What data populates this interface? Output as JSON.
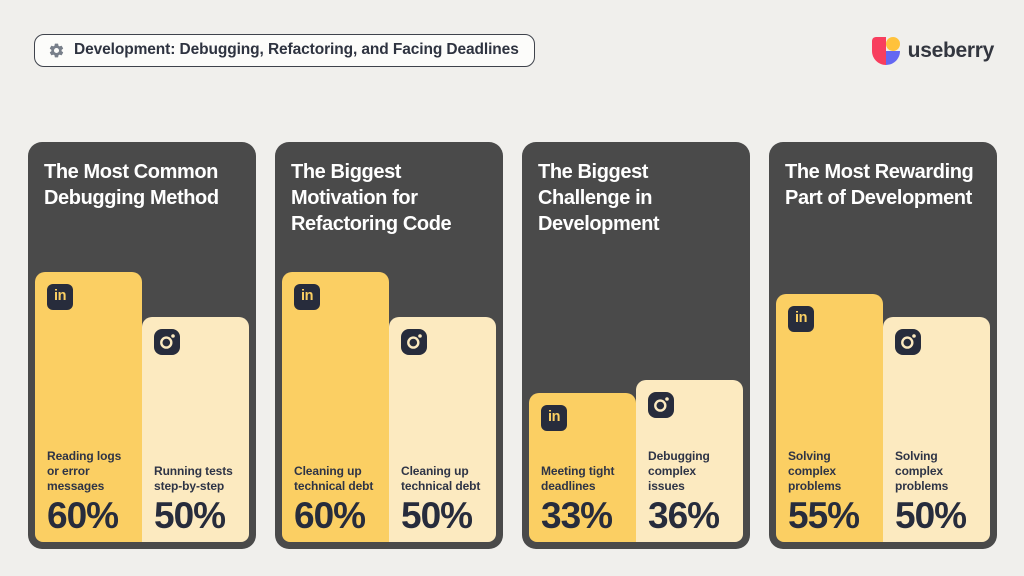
{
  "header": {
    "tag_label": "Development: Debugging, Refactoring, and Facing Deadlines",
    "brand_name": "useberry"
  },
  "icons": {
    "gear": "gear-icon",
    "linkedin": "linkedin-icon",
    "instagram": "instagram-icon",
    "logo_mark": "useberry-logo-mark"
  },
  "colors": {
    "page_bg": "#F0EFEC",
    "panel_bg": "#4A4A4A",
    "li_bar": "#FBCF63",
    "ig_bar": "#FCEAC0",
    "ink": "#272C3C",
    "logo_pink": "#F83E5E",
    "logo_indigo": "#6467F2",
    "logo_yellow": "#FFC23C",
    "gear_gray": "#787F8A"
  },
  "chart_data": [
    {
      "type": "bar",
      "title": "The Most Common\nDebugging Method",
      "ylim": [
        0,
        100
      ],
      "unit": "%",
      "bars": [
        {
          "source": "LinkedIn",
          "label": "Reading logs\nor error\nmessages",
          "value": 60,
          "pct_label": "60%"
        },
        {
          "source": "Instagram",
          "label": "Running tests\nstep-by-step",
          "value": 50,
          "pct_label": "50%"
        }
      ]
    },
    {
      "type": "bar",
      "title": "The Biggest\nMotivation for\nRefactoring Code",
      "ylim": [
        0,
        100
      ],
      "unit": "%",
      "bars": [
        {
          "source": "LinkedIn",
          "label": "Cleaning up\ntechnical debt",
          "value": 60,
          "pct_label": "60%"
        },
        {
          "source": "Instagram",
          "label": "Cleaning up\ntechnical debt",
          "value": 50,
          "pct_label": "50%"
        }
      ]
    },
    {
      "type": "bar",
      "title": "The Biggest\nChallenge in\nDevelopment",
      "ylim": [
        0,
        100
      ],
      "unit": "%",
      "bars": [
        {
          "source": "LinkedIn",
          "label": "Meeting tight\ndeadlines",
          "value": 33,
          "pct_label": "33%"
        },
        {
          "source": "Instagram",
          "label": "Debugging\ncomplex\nissues",
          "value": 36,
          "pct_label": "36%"
        }
      ]
    },
    {
      "type": "bar",
      "title": "The Most Rewarding\nPart of Development",
      "ylim": [
        0,
        100
      ],
      "unit": "%",
      "bars": [
        {
          "source": "LinkedIn",
          "label": "Solving\ncomplex\nproblems",
          "value": 55,
          "pct_label": "55%"
        },
        {
          "source": "Instagram",
          "label": "Solving\ncomplex\nproblems",
          "value": 50,
          "pct_label": "50%"
        }
      ]
    }
  ]
}
